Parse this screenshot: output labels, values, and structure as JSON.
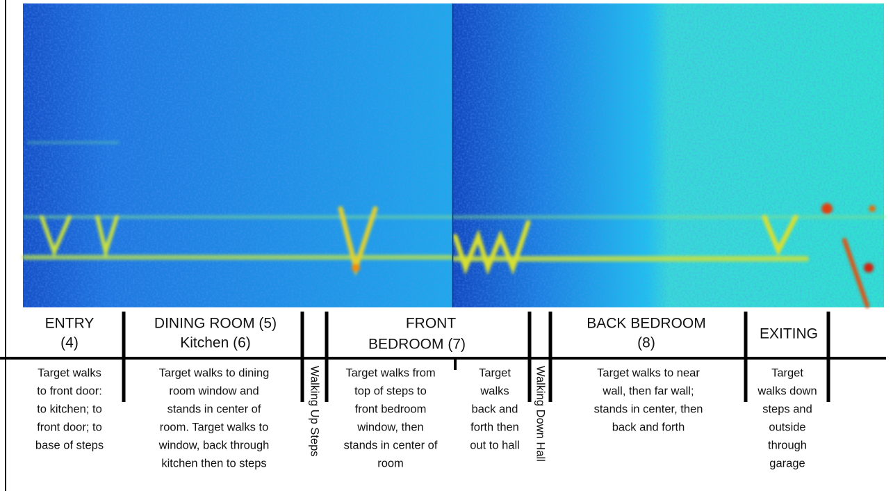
{
  "sections": [
    {
      "header": [
        "ENTRY",
        "(4)"
      ],
      "description": [
        "Target walks",
        "to front door:",
        "to kitchen; to",
        "front door; to",
        "base of steps"
      ]
    },
    {
      "header": [
        "DINING ROOM (5)",
        "Kitchen (6)"
      ],
      "description": [
        "Target walks to dining",
        "room window and",
        "stands in center of",
        "room. Target walks to",
        "window, back through",
        "kitchen then to steps"
      ]
    },
    {
      "rotated": "Walking Up Steps"
    },
    {
      "header": [
        "FRONT",
        "BEDROOM (7)"
      ],
      "description": [
        "Target walks from",
        "top of steps to",
        "front bedroom",
        "window, then",
        "stands in center of",
        "room"
      ]
    },
    {
      "description": [
        "Target",
        "walks",
        "back and",
        "forth then",
        "out to hall"
      ]
    },
    {
      "rotated": "Walking Down Hall"
    },
    {
      "header": [
        "BACK BEDROOM",
        "(8)"
      ],
      "description": [
        "Target walks to near",
        "wall, then far wall;",
        "stands in center, then",
        "back and forth"
      ]
    },
    {
      "header": [
        "EXITING"
      ],
      "description": [
        "Target",
        "walks down",
        "steps and",
        "outside",
        "through",
        "garage"
      ]
    }
  ]
}
